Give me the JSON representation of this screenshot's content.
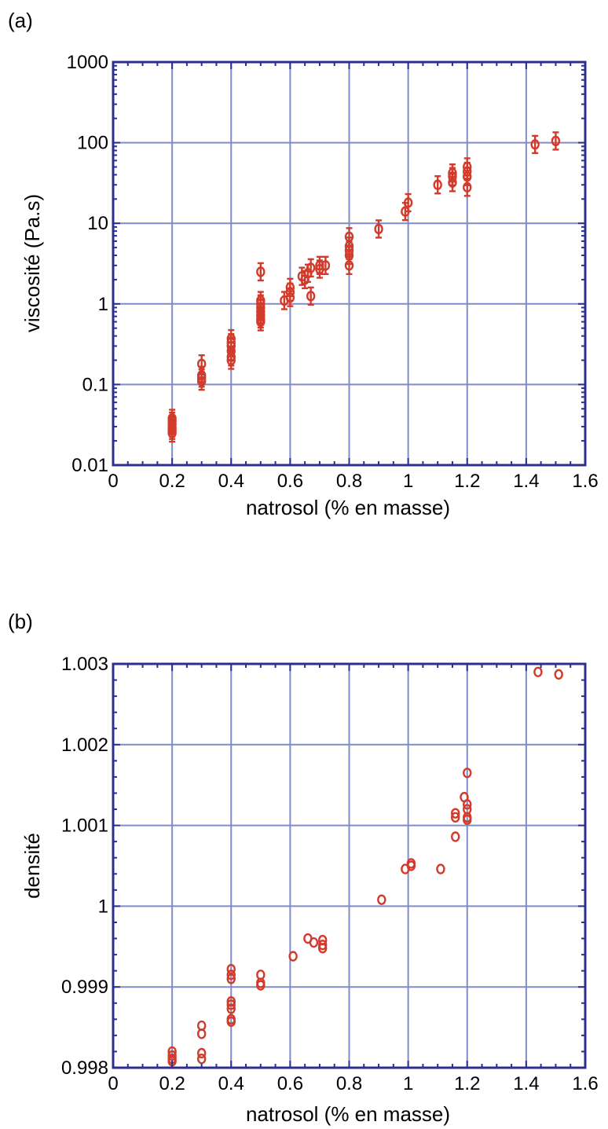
{
  "chart_data": [
    {
      "panel_label": "(a)",
      "type": "scatter",
      "xlabel": "natrosol (% en masse)",
      "ylabel": "viscosité (Pa.s)",
      "xlim": [
        0,
        1.6
      ],
      "ylim": [
        0.01,
        1000
      ],
      "yscale": "log",
      "grid": true,
      "xticks": [
        0,
        0.2,
        0.4,
        0.6,
        0.8,
        1,
        1.2,
        1.4,
        1.6
      ],
      "xtick_labels": [
        "0",
        "0.2",
        "0.4",
        "0.6",
        "0.8",
        "1",
        "1.2",
        "1.4",
        "1.6"
      ],
      "yticks": [
        0.01,
        0.1,
        1,
        10,
        100,
        1000
      ],
      "ytick_labels": [
        "0.01",
        "0.1",
        "1",
        "10",
        "100",
        "1000"
      ],
      "error_bars": true,
      "error_factor": 1.28,
      "marker_color": "#d23a2b",
      "frame_color": "#2b2f8f",
      "grid_color": "#7f8cc6",
      "points": [
        {
          "x": 0.2,
          "y": 0.025
        },
        {
          "x": 0.2,
          "y": 0.027
        },
        {
          "x": 0.2,
          "y": 0.029
        },
        {
          "x": 0.2,
          "y": 0.032
        },
        {
          "x": 0.2,
          "y": 0.035
        },
        {
          "x": 0.2,
          "y": 0.038
        },
        {
          "x": 0.3,
          "y": 0.11
        },
        {
          "x": 0.3,
          "y": 0.12
        },
        {
          "x": 0.3,
          "y": 0.13
        },
        {
          "x": 0.3,
          "y": 0.18
        },
        {
          "x": 0.4,
          "y": 0.2
        },
        {
          "x": 0.4,
          "y": 0.22
        },
        {
          "x": 0.4,
          "y": 0.26
        },
        {
          "x": 0.4,
          "y": 0.3
        },
        {
          "x": 0.4,
          "y": 0.33
        },
        {
          "x": 0.4,
          "y": 0.37
        },
        {
          "x": 0.5,
          "y": 0.6
        },
        {
          "x": 0.5,
          "y": 0.65
        },
        {
          "x": 0.5,
          "y": 0.72
        },
        {
          "x": 0.5,
          "y": 0.8
        },
        {
          "x": 0.5,
          "y": 0.9
        },
        {
          "x": 0.5,
          "y": 1.0
        },
        {
          "x": 0.5,
          "y": 1.1
        },
        {
          "x": 0.5,
          "y": 2.5
        },
        {
          "x": 0.58,
          "y": 1.1
        },
        {
          "x": 0.6,
          "y": 1.2
        },
        {
          "x": 0.6,
          "y": 1.4
        },
        {
          "x": 0.6,
          "y": 1.6
        },
        {
          "x": 0.64,
          "y": 2.2
        },
        {
          "x": 0.65,
          "y": 2.0
        },
        {
          "x": 0.66,
          "y": 2.4
        },
        {
          "x": 0.67,
          "y": 1.25
        },
        {
          "x": 0.67,
          "y": 2.8
        },
        {
          "x": 0.7,
          "y": 2.7
        },
        {
          "x": 0.7,
          "y": 3.0
        },
        {
          "x": 0.72,
          "y": 3.0
        },
        {
          "x": 0.8,
          "y": 3.0
        },
        {
          "x": 0.8,
          "y": 4.0
        },
        {
          "x": 0.8,
          "y": 4.6
        },
        {
          "x": 0.8,
          "y": 5.2
        },
        {
          "x": 0.8,
          "y": 6.8
        },
        {
          "x": 0.9,
          "y": 8.5
        },
        {
          "x": 0.99,
          "y": 14
        },
        {
          "x": 1.0,
          "y": 18
        },
        {
          "x": 1.1,
          "y": 30
        },
        {
          "x": 1.15,
          "y": 32
        },
        {
          "x": 1.15,
          "y": 38
        },
        {
          "x": 1.15,
          "y": 42
        },
        {
          "x": 1.2,
          "y": 28
        },
        {
          "x": 1.2,
          "y": 38
        },
        {
          "x": 1.2,
          "y": 44
        },
        {
          "x": 1.2,
          "y": 50
        },
        {
          "x": 1.43,
          "y": 95
        },
        {
          "x": 1.5,
          "y": 105
        }
      ]
    },
    {
      "panel_label": "(b)",
      "type": "scatter",
      "xlabel": "natrosol (% en masse)",
      "ylabel": "densité",
      "xlim": [
        0,
        1.6
      ],
      "ylim": [
        0.998,
        1.003
      ],
      "yscale": "linear",
      "grid": true,
      "xticks": [
        0,
        0.2,
        0.4,
        0.6,
        0.8,
        1,
        1.2,
        1.4,
        1.6
      ],
      "xtick_labels": [
        "0",
        "0.2",
        "0.4",
        "0.6",
        "0.8",
        "1",
        "1.2",
        "1.4",
        "1.6"
      ],
      "yticks": [
        0.998,
        0.999,
        1,
        1.001,
        1.002,
        1.003
      ],
      "ytick_labels": [
        "0.998",
        "0.999",
        "1",
        "1.001",
        "1.002",
        "1.003"
      ],
      "error_bars": false,
      "marker_color": "#d23a2b",
      "frame_color": "#2b2f8f",
      "grid_color": "#7f8cc6",
      "points": [
        {
          "x": 0.2,
          "y": 0.99808
        },
        {
          "x": 0.2,
          "y": 0.99811
        },
        {
          "x": 0.2,
          "y": 0.99815
        },
        {
          "x": 0.2,
          "y": 0.9982
        },
        {
          "x": 0.3,
          "y": 0.99811
        },
        {
          "x": 0.3,
          "y": 0.99818
        },
        {
          "x": 0.3,
          "y": 0.99842
        },
        {
          "x": 0.3,
          "y": 0.99852
        },
        {
          "x": 0.4,
          "y": 0.99857
        },
        {
          "x": 0.4,
          "y": 0.9986
        },
        {
          "x": 0.4,
          "y": 0.99873
        },
        {
          "x": 0.4,
          "y": 0.99878
        },
        {
          "x": 0.4,
          "y": 0.99882
        },
        {
          "x": 0.4,
          "y": 0.9991
        },
        {
          "x": 0.4,
          "y": 0.99915
        },
        {
          "x": 0.4,
          "y": 0.99922
        },
        {
          "x": 0.5,
          "y": 0.99902
        },
        {
          "x": 0.5,
          "y": 0.99905
        },
        {
          "x": 0.5,
          "y": 0.99915
        },
        {
          "x": 0.61,
          "y": 0.99938
        },
        {
          "x": 0.66,
          "y": 0.9996
        },
        {
          "x": 0.68,
          "y": 0.99955
        },
        {
          "x": 0.71,
          "y": 0.99948
        },
        {
          "x": 0.71,
          "y": 0.99952
        },
        {
          "x": 0.71,
          "y": 0.99958
        },
        {
          "x": 0.91,
          "y": 1.00008
        },
        {
          "x": 0.99,
          "y": 1.00046
        },
        {
          "x": 1.01,
          "y": 1.0005
        },
        {
          "x": 1.01,
          "y": 1.00053
        },
        {
          "x": 1.11,
          "y": 1.00046
        },
        {
          "x": 1.16,
          "y": 1.00086
        },
        {
          "x": 1.16,
          "y": 1.0011
        },
        {
          "x": 1.16,
          "y": 1.00115
        },
        {
          "x": 1.2,
          "y": 1.00107
        },
        {
          "x": 1.2,
          "y": 1.0011
        },
        {
          "x": 1.2,
          "y": 1.0012
        },
        {
          "x": 1.2,
          "y": 1.00126
        },
        {
          "x": 1.19,
          "y": 1.00135
        },
        {
          "x": 1.2,
          "y": 1.00165
        },
        {
          "x": 1.44,
          "y": 1.0029
        },
        {
          "x": 1.51,
          "y": 1.00287
        }
      ]
    }
  ]
}
